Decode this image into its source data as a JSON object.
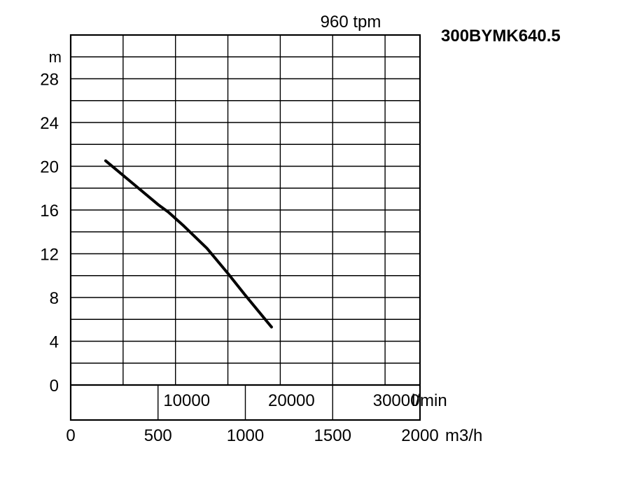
{
  "chart_data": {
    "type": "line",
    "model": "300BYMK640.5",
    "speed_label": "960 tpm",
    "y_unit": "m",
    "ylim": [
      0,
      32
    ],
    "y_ticks": [
      0,
      4,
      8,
      12,
      16,
      20,
      24,
      28
    ],
    "x_primary_unit": "m3/h",
    "xlim": [
      0,
      2000
    ],
    "x_primary_ticks": [
      0,
      500,
      1000,
      1500,
      2000
    ],
    "x_secondary_unit": "l/min",
    "x_secondary_ticks": [
      10000,
      20000,
      30000
    ],
    "grid": true,
    "series": [
      {
        "x": [
          200,
          350,
          500,
          560,
          650,
          780,
          900,
          1000,
          1150
        ],
        "y": [
          20.5,
          18.5,
          16.5,
          15.8,
          14.5,
          12.5,
          10.2,
          8.2,
          5.3
        ]
      }
    ]
  }
}
